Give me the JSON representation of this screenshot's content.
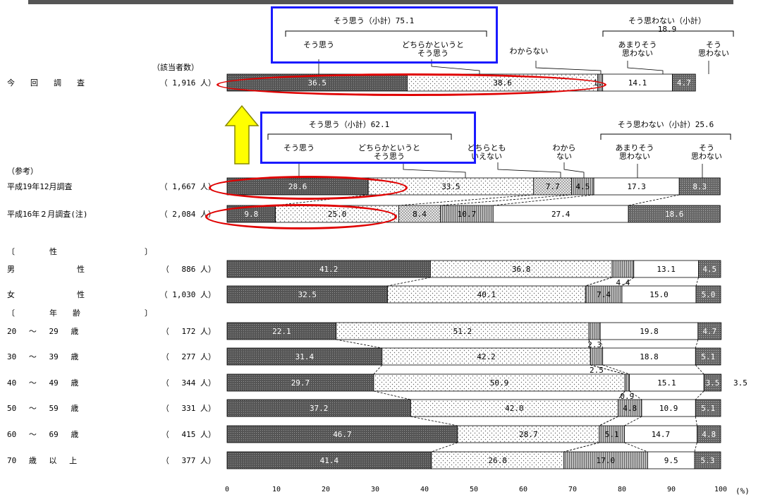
{
  "chart_data": {
    "type": "stacked-bar-horizontal",
    "x_unit": "(%)",
    "xlim": [
      0,
      100
    ],
    "x_ticks": [
      0,
      10,
      20,
      30,
      40,
      50,
      60,
      70,
      80,
      90,
      100
    ],
    "n_header": "（該当者数）",
    "legend_current": {
      "agree_subtotal": "そう思う（小計）75.1",
      "disagree_subtotal": "そう思わない（小計）18.9",
      "labels": [
        "そう思う",
        "どちらかというと\nそう思う",
        "わからない",
        "あまりそう\n思わない",
        "そう\n思わない"
      ]
    },
    "legend_reference": {
      "agree_subtotal": "そう思う（小計）62.1",
      "disagree_subtotal": "そう思わない（小計）25.6",
      "labels": [
        "そう思う",
        "どちらかというと\nそう思う",
        "どちらとも\nいえない",
        "わから\nない",
        "あまりそう\n思わない",
        "そう\n思わない"
      ]
    },
    "reference_heading": "（参考）",
    "group_headings": [
      {
        "open": "〔",
        "name": "性",
        "close": "〕"
      },
      {
        "open": "〔",
        "name": "年　　齢",
        "close": "〕"
      }
    ],
    "rows": [
      {
        "label": "今　　回　　調　　査",
        "n": "（ 1,916 人）",
        "values": [
          36.5,
          38.6,
          0,
          1.0,
          14.1,
          4.7
        ],
        "texts": [
          "36.5",
          "38.6",
          "",
          "1.0",
          "14.1",
          "4.7"
        ]
      },
      {
        "label": "平成19年12月調査",
        "n": "（ 1,667 人）",
        "values": [
          28.6,
          33.5,
          7.7,
          4.5,
          17.3,
          8.3
        ],
        "texts": [
          "28.6",
          "33.5",
          "7.7",
          "4.5",
          "17.3",
          "8.3"
        ]
      },
      {
        "label": "平成16年２月調査(注)",
        "n": "（ 2,084 人）",
        "values": [
          9.8,
          25.0,
          8.4,
          10.7,
          27.4,
          18.6
        ],
        "texts": [
          "9.8",
          "25.0",
          "8.4",
          "10.7",
          "27.4",
          "18.6"
        ]
      },
      {
        "label": "男　　　　　　　　性",
        "n": "（　 886 人）",
        "values": [
          41.2,
          36.8,
          0,
          4.4,
          13.1,
          4.5
        ],
        "texts": [
          "41.2",
          "36.8",
          "",
          "",
          "13.1",
          "4.5"
        ]
      },
      {
        "label": "女　　　　　　　　性",
        "n": "（ 1,030 人）",
        "values": [
          32.5,
          40.1,
          0,
          7.4,
          15.0,
          5.0
        ],
        "texts": [
          "32.5",
          "40.1",
          "",
          "7.4",
          "15.0",
          "5.0"
        ]
      },
      {
        "label": "20　 ～　 29　 歳",
        "n": "（　 172 人）",
        "values": [
          22.1,
          51.2,
          0,
          2.3,
          19.8,
          4.7
        ],
        "texts": [
          "22.1",
          "51.2",
          "",
          "",
          "19.8",
          "4.7"
        ]
      },
      {
        "label": "30　 ～　 39　 歳",
        "n": "（　 277 人）",
        "values": [
          31.4,
          42.2,
          0,
          2.5,
          18.8,
          5.1
        ],
        "texts": [
          "31.4",
          "42.2",
          "",
          "",
          "18.8",
          "5.1"
        ]
      },
      {
        "label": "40　 ～　 49　 歳",
        "n": "（　 344 人）",
        "values": [
          29.7,
          50.9,
          0,
          0.9,
          15.1,
          3.5
        ],
        "texts": [
          "29.7",
          "50.9",
          "",
          "",
          "15.1",
          "3.5"
        ]
      },
      {
        "label": "50　 ～　 59　 歳",
        "n": "（　 331 人）",
        "values": [
          37.2,
          42.0,
          0,
          4.8,
          10.9,
          5.1
        ],
        "texts": [
          "37.2",
          "42.0",
          "",
          "4.8",
          "10.9",
          "5.1"
        ]
      },
      {
        "label": "60　 ～　 69　 歳",
        "n": "（　 415 人）",
        "values": [
          46.7,
          28.7,
          0,
          5.1,
          14.7,
          4.8
        ],
        "texts": [
          "46.7",
          "28.7",
          "",
          "5.1",
          "14.7",
          "4.8"
        ]
      },
      {
        "label": "70　 歳　 以　 上",
        "n": "（　 377 人）",
        "values": [
          41.4,
          26.8,
          0,
          17.0,
          9.5,
          5.3
        ],
        "texts": [
          "41.4",
          "26.8",
          "",
          "17.0",
          "9.5",
          "5.3"
        ]
      }
    ],
    "outside_labels": [
      {
        "row": 3,
        "text": "4.4"
      },
      {
        "row": 5,
        "text": "2.3"
      },
      {
        "row": 6,
        "text": "2.5"
      },
      {
        "row": 7,
        "text": "0.9"
      },
      {
        "row": 7,
        "text": "3.5",
        "position": "right"
      }
    ]
  }
}
